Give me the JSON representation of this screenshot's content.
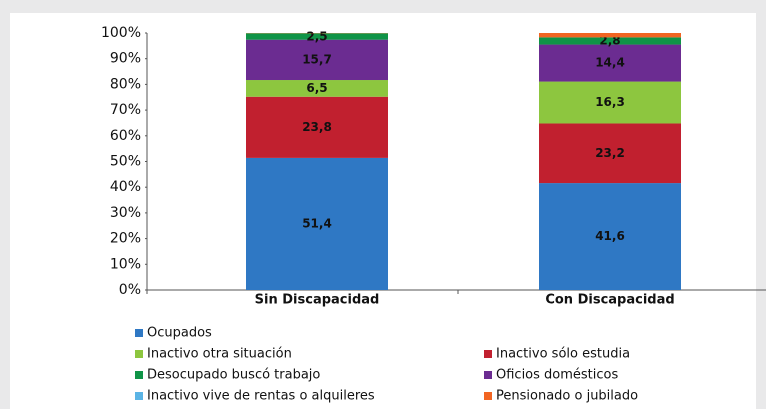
{
  "chart_data": {
    "type": "stacked_bar",
    "categories": [
      "Sin Discapacidad",
      "Con Discapacidad"
    ],
    "series": [
      {
        "name": "Ocupados",
        "color": "#2f78c4",
        "values": [
          51.4,
          41.6
        ],
        "value_labels": [
          "51,4",
          "41,6"
        ]
      },
      {
        "name": "Inactivo sólo estudia",
        "color": "#c1202f",
        "values": [
          23.8,
          23.2
        ],
        "value_labels": [
          "23,8",
          "23,2"
        ]
      },
      {
        "name": "Inactivo otra situación",
        "color": "#8dc63f",
        "values": [
          6.5,
          16.3
        ],
        "value_labels": [
          "6,5",
          "16,3"
        ]
      },
      {
        "name": "Oficios domésticos",
        "color": "#6b2c91",
        "values": [
          15.7,
          14.4
        ],
        "value_labels": [
          "15,7",
          "14,4"
        ]
      },
      {
        "name": "Desocupado buscó trabajo",
        "color": "#0f9447",
        "values": [
          2.5,
          2.8
        ],
        "value_labels": [
          "2,5",
          "2,8"
        ]
      },
      {
        "name": "Pensionado o jubilado",
        "color": "#f26522",
        "values": [
          0.1,
          1.7
        ],
        "value_labels": [
          null,
          null
        ]
      },
      {
        "name": "Inactivo vive de rentas o alquileres",
        "color": "#5bb4e5",
        "values": [
          0,
          0
        ],
        "value_labels": [
          null,
          null
        ]
      }
    ],
    "ylim": [
      0,
      100
    ],
    "yticks": [
      {
        "value": 0,
        "label": "0%"
      },
      {
        "value": 10,
        "label": "10%"
      },
      {
        "value": 20,
        "label": "20%"
      },
      {
        "value": 30,
        "label": "30%"
      },
      {
        "value": 40,
        "label": "40%"
      },
      {
        "value": 50,
        "label": "50%"
      },
      {
        "value": 60,
        "label": "60%"
      },
      {
        "value": 70,
        "label": "70%"
      },
      {
        "value": 80,
        "label": "80%"
      },
      {
        "value": 90,
        "label": "90%"
      },
      {
        "value": 100,
        "label": "100%"
      }
    ]
  }
}
